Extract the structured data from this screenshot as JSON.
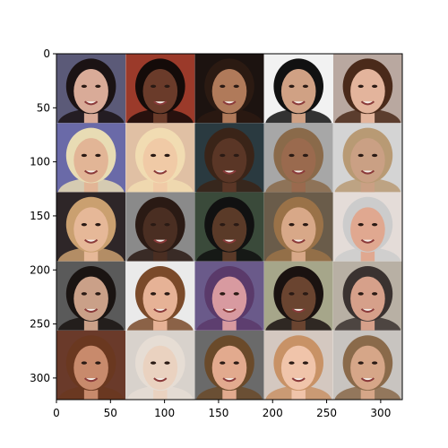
{
  "chart_data": {
    "type": "image-grid",
    "image_width": 320,
    "image_height": 320,
    "grid_rows": 5,
    "grid_cols": 5,
    "cell_size": 64,
    "x_ticks": [
      0,
      50,
      100,
      150,
      200,
      250,
      300
    ],
    "y_ticks": [
      0,
      50,
      100,
      150,
      200,
      250,
      300
    ],
    "x_tick_labels": [
      "0",
      "50",
      "100",
      "150",
      "200",
      "250",
      "300"
    ],
    "y_tick_labels": [
      "0",
      "50",
      "100",
      "150",
      "200",
      "250",
      "300"
    ],
    "xlim": [
      0,
      320
    ],
    "ylim": [
      320,
      0
    ],
    "grid": false,
    "tiles": [
      {
        "row": 0,
        "col": 0,
        "background": "#5b5a78",
        "skin": "#d9ab98",
        "hair": "#1b1314"
      },
      {
        "row": 0,
        "col": 1,
        "background": "#9b3a2a",
        "skin": "#6a3b2a",
        "hair": "#140b09"
      },
      {
        "row": 0,
        "col": 2,
        "background": "#1c1310",
        "skin": "#b07a5a",
        "hair": "#2b1a12"
      },
      {
        "row": 0,
        "col": 3,
        "background": "#f2f2f2",
        "skin": "#d0a184",
        "hair": "#111111"
      },
      {
        "row": 0,
        "col": 4,
        "background": "#b9a8a0",
        "skin": "#e3b49c",
        "hair": "#4a2a1a"
      },
      {
        "row": 1,
        "col": 0,
        "background": "#6a6aa8",
        "skin": "#e2b596",
        "hair": "#e8dcb4"
      },
      {
        "row": 1,
        "col": 1,
        "background": "#e0c0a4",
        "skin": "#f0caa6",
        "hair": "#f1dcb2"
      },
      {
        "row": 1,
        "col": 2,
        "background": "#2a3a40",
        "skin": "#5a3626",
        "hair": "#3a2418"
      },
      {
        "row": 1,
        "col": 3,
        "background": "#a7a7a7",
        "skin": "#9a6a4e",
        "hair": "#8a6a4a"
      },
      {
        "row": 1,
        "col": 4,
        "background": "#d4d4d4",
        "skin": "#caa084",
        "hair": "#b89a74"
      },
      {
        "row": 2,
        "col": 0,
        "background": "#2e2628",
        "skin": "#e6b898",
        "hair": "#caa070"
      },
      {
        "row": 2,
        "col": 1,
        "background": "#8a8a8a",
        "skin": "#4a2e22",
        "hair": "#2a1a14"
      },
      {
        "row": 2,
        "col": 2,
        "background": "#3a4a3a",
        "skin": "#5a3a28",
        "hair": "#111111"
      },
      {
        "row": 2,
        "col": 3,
        "background": "#6a5c4a",
        "skin": "#d8a888",
        "hair": "#9a7248"
      },
      {
        "row": 2,
        "col": 4,
        "background": "#e4dcd8",
        "skin": "#e0a890",
        "hair": "#cccccc"
      },
      {
        "row": 3,
        "col": 0,
        "background": "#5a5a5a",
        "skin": "#caa088",
        "hair": "#1a1412"
      },
      {
        "row": 3,
        "col": 1,
        "background": "#eaeaea",
        "skin": "#e6b296",
        "hair": "#7a4a2a"
      },
      {
        "row": 3,
        "col": 2,
        "background": "#6a5a8a",
        "skin": "#d89aa0",
        "hair": "#5a3a6a"
      },
      {
        "row": 3,
        "col": 3,
        "background": "#a6a68a",
        "skin": "#6a4430",
        "hair": "#1a1210"
      },
      {
        "row": 3,
        "col": 4,
        "background": "#b8b0a4",
        "skin": "#d6a08a",
        "hair": "#3a3230"
      },
      {
        "row": 4,
        "col": 0,
        "background": "#6a3a2a",
        "skin": "#c88a6c",
        "hair": "#6a3820"
      },
      {
        "row": 4,
        "col": 1,
        "background": "#d8d2cc",
        "skin": "#ead2c0",
        "hair": "#e6ddd4"
      },
      {
        "row": 4,
        "col": 2,
        "background": "#6a6a6a",
        "skin": "#e2aa8e",
        "hair": "#6a4a2a"
      },
      {
        "row": 4,
        "col": 3,
        "background": "#d4c8c0",
        "skin": "#f0c4aa",
        "hair": "#c89266"
      },
      {
        "row": 4,
        "col": 4,
        "background": "#c8c4c0",
        "skin": "#d6a688",
        "hair": "#8a6a4a"
      }
    ]
  }
}
